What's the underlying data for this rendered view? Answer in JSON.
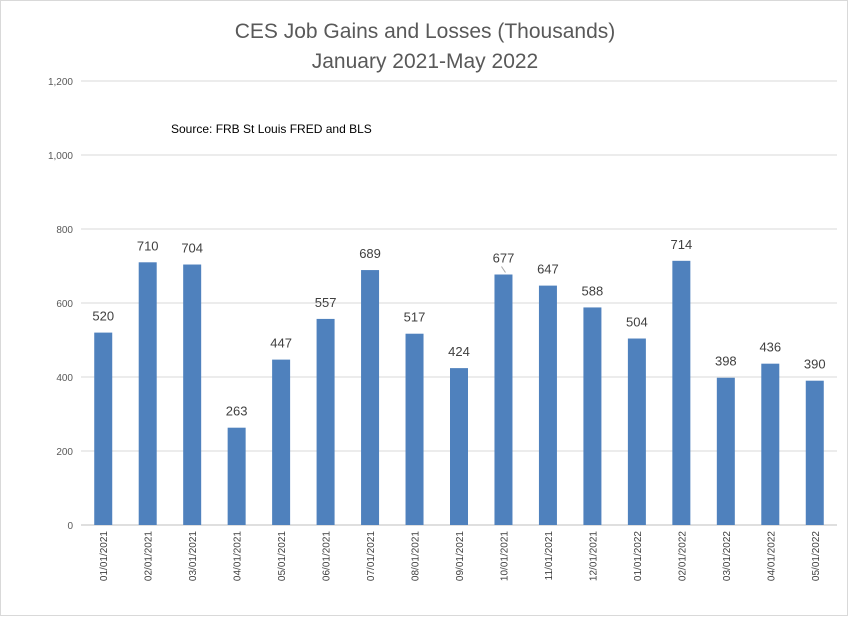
{
  "chart_data": {
    "type": "bar",
    "title": "CES Job Gains and Losses (Thousands)",
    "subtitle": "January 2021-May 2022",
    "annotation": "Source: FRB St Louis FRED and BLS",
    "xlabel": "",
    "ylabel": "",
    "ylim": [
      0,
      1200
    ],
    "yticks": [
      "0",
      "200",
      "400",
      "600",
      "800",
      "1,000",
      "1,200"
    ],
    "ytick_values": [
      0,
      200,
      400,
      600,
      800,
      1000,
      1200
    ],
    "grid": true,
    "legend": "none",
    "bar_color": "#4f81bd",
    "highlight_label_color": "#ff0000",
    "highlight_index": 9,
    "categories": [
      "01/01/2021",
      "02/01/2021",
      "03/01/2021",
      "04/01/2021",
      "05/01/2021",
      "06/01/2021",
      "07/01/2021",
      "08/01/2021",
      "09/01/2021",
      "10/01/2021",
      "11/01/2021",
      "12/01/2021",
      "01/01/2022",
      "02/01/2022",
      "03/01/2022",
      "04/01/2022",
      "05/01/2022"
    ],
    "values": [
      520,
      710,
      704,
      263,
      447,
      557,
      689,
      517,
      424,
      677,
      647,
      588,
      504,
      714,
      398,
      436,
      390
    ]
  }
}
